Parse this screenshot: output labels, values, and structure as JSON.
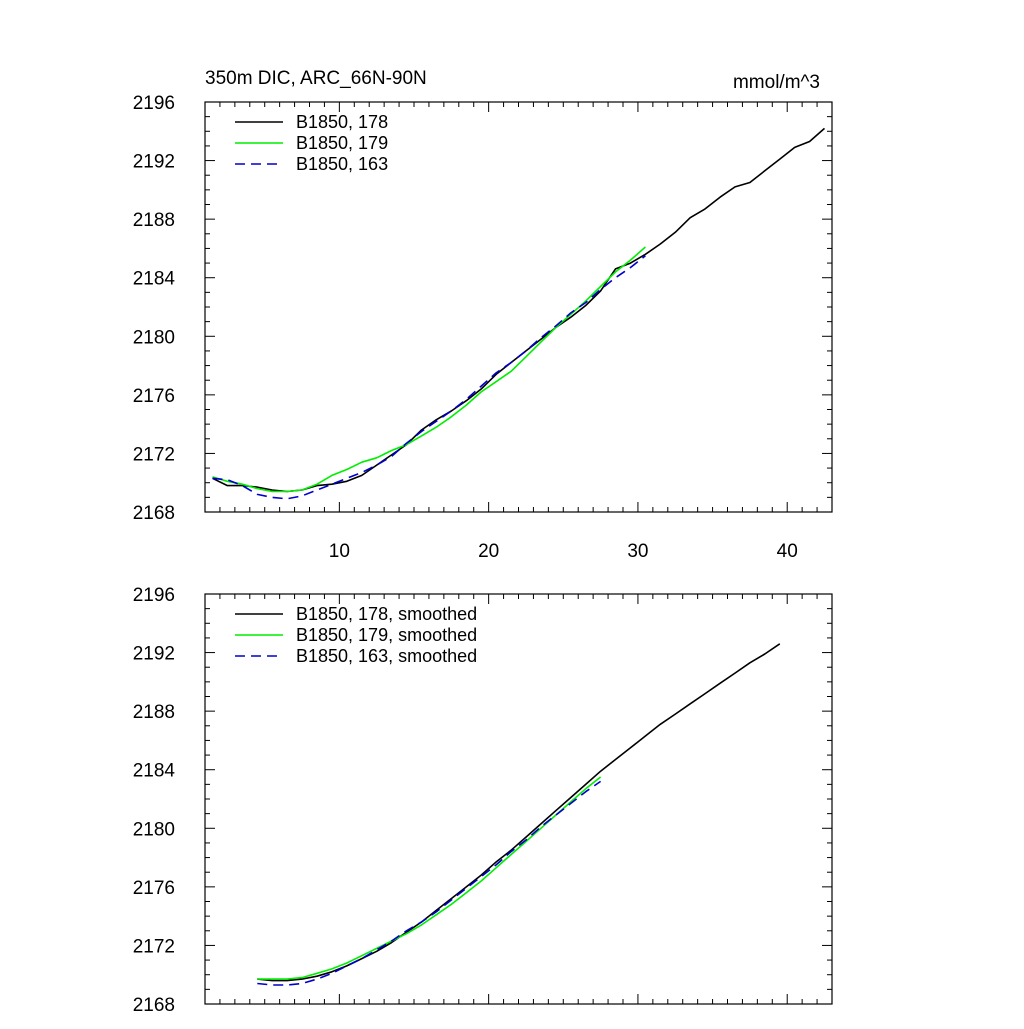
{
  "colors": {
    "black": "#000000",
    "green": "#00ee00",
    "blue": "#0000cc"
  },
  "chart_data": [
    {
      "type": "line",
      "title": "350m DIC, ARC_66N-90N",
      "units": "mmol/m^3",
      "xlim": [
        1,
        43
      ],
      "ylim": [
        2168,
        2196
      ],
      "x_ticks": [
        10,
        20,
        30,
        40
      ],
      "y_ticks": [
        2168,
        2172,
        2176,
        2180,
        2184,
        2188,
        2192,
        2196
      ],
      "legend_position": "top-left",
      "series": [
        {
          "name": "B1850, 178",
          "color": "#000000",
          "dash": "solid",
          "points": [
            [
              1.5,
              2170.3
            ],
            [
              2.5,
              2169.8
            ],
            [
              3.5,
              2169.8
            ],
            [
              4.5,
              2169.7
            ],
            [
              5.5,
              2169.5
            ],
            [
              6.5,
              2169.4
            ],
            [
              7.5,
              2169.5
            ],
            [
              8.5,
              2169.8
            ],
            [
              9.5,
              2169.9
            ],
            [
              10.5,
              2170.1
            ],
            [
              11.5,
              2170.5
            ],
            [
              12.5,
              2171.2
            ],
            [
              13.5,
              2171.9
            ],
            [
              14.5,
              2172.6
            ],
            [
              15.5,
              2173.6
            ],
            [
              16.5,
              2174.3
            ],
            [
              17.5,
              2174.9
            ],
            [
              18.5,
              2175.6
            ],
            [
              19.5,
              2176.4
            ],
            [
              20.5,
              2177.4
            ],
            [
              21.5,
              2178.2
            ],
            [
              22.5,
              2179.0
            ],
            [
              23.5,
              2179.8
            ],
            [
              24.5,
              2180.6
            ],
            [
              25.5,
              2181.3
            ],
            [
              26.5,
              2182.1
            ],
            [
              27.5,
              2183.1
            ],
            [
              28.5,
              2184.6
            ],
            [
              29.5,
              2185.0
            ],
            [
              30.5,
              2185.6
            ],
            [
              31.5,
              2186.3
            ],
            [
              32.5,
              2187.1
            ],
            [
              33.5,
              2188.1
            ],
            [
              34.5,
              2188.7
            ],
            [
              35.5,
              2189.5
            ],
            [
              36.5,
              2190.2
            ],
            [
              37.5,
              2190.5
            ],
            [
              38.5,
              2191.3
            ],
            [
              39.5,
              2192.1
            ],
            [
              40.5,
              2192.9
            ],
            [
              41.5,
              2193.3
            ],
            [
              42.5,
              2194.2
            ]
          ]
        },
        {
          "name": "B1850, 179",
          "color": "#00ee00",
          "dash": "solid",
          "points": [
            [
              1.5,
              2170.4
            ],
            [
              2.5,
              2170.1
            ],
            [
              3.5,
              2169.9
            ],
            [
              4.5,
              2169.6
            ],
            [
              5.5,
              2169.4
            ],
            [
              6.5,
              2169.4
            ],
            [
              7.5,
              2169.5
            ],
            [
              8.5,
              2169.9
            ],
            [
              9.5,
              2170.5
            ],
            [
              10.5,
              2170.9
            ],
            [
              11.5,
              2171.4
            ],
            [
              12.5,
              2171.7
            ],
            [
              13.5,
              2172.2
            ],
            [
              14.5,
              2172.6
            ],
            [
              15.5,
              2173.2
            ],
            [
              16.5,
              2173.8
            ],
            [
              17.5,
              2174.5
            ],
            [
              18.5,
              2175.3
            ],
            [
              19.5,
              2176.2
            ],
            [
              20.5,
              2176.9
            ],
            [
              21.5,
              2177.6
            ],
            [
              22.5,
              2178.6
            ],
            [
              23.5,
              2179.6
            ],
            [
              24.5,
              2180.6
            ],
            [
              25.5,
              2181.5
            ],
            [
              26.5,
              2182.4
            ],
            [
              27.5,
              2183.4
            ],
            [
              28.5,
              2184.4
            ],
            [
              29.5,
              2185.2
            ],
            [
              30.5,
              2186.1
            ]
          ]
        },
        {
          "name": "B1850, 163",
          "color": "#0000cc",
          "dash": "dashed",
          "points": [
            [
              1.5,
              2170.3
            ],
            [
              2.5,
              2170.2
            ],
            [
              3.5,
              2169.8
            ],
            [
              4.5,
              2169.2
            ],
            [
              5.5,
              2169.0
            ],
            [
              6.5,
              2168.9
            ],
            [
              7.5,
              2169.1
            ],
            [
              8.5,
              2169.5
            ],
            [
              9.5,
              2169.9
            ],
            [
              10.5,
              2170.3
            ],
            [
              11.5,
              2170.7
            ],
            [
              12.5,
              2171.2
            ],
            [
              13.5,
              2171.8
            ],
            [
              14.5,
              2172.7
            ],
            [
              15.5,
              2173.5
            ],
            [
              16.5,
              2174.2
            ],
            [
              17.5,
              2174.9
            ],
            [
              18.5,
              2175.7
            ],
            [
              19.5,
              2176.6
            ],
            [
              20.5,
              2177.5
            ],
            [
              21.5,
              2178.2
            ],
            [
              22.5,
              2179.0
            ],
            [
              23.5,
              2179.9
            ],
            [
              24.5,
              2180.7
            ],
            [
              25.5,
              2181.6
            ],
            [
              26.5,
              2182.3
            ],
            [
              27.5,
              2183.2
            ],
            [
              28.5,
              2184.0
            ],
            [
              29.5,
              2184.7
            ],
            [
              30.5,
              2185.5
            ]
          ]
        }
      ]
    },
    {
      "type": "line",
      "title": "",
      "units": "",
      "xlim": [
        1,
        43
      ],
      "ylim": [
        2168,
        2196
      ],
      "x_ticks": [
        10,
        20,
        30,
        40
      ],
      "y_ticks": [
        2168,
        2172,
        2176,
        2180,
        2184,
        2188,
        2192,
        2196
      ],
      "legend_position": "top-left",
      "series": [
        {
          "name": "B1850, 178, smoothed",
          "color": "#000000",
          "dash": "solid",
          "points": [
            [
              4.5,
              2169.7
            ],
            [
              5.5,
              2169.6
            ],
            [
              6.5,
              2169.6
            ],
            [
              7.5,
              2169.7
            ],
            [
              8.5,
              2169.9
            ],
            [
              9.5,
              2170.2
            ],
            [
              10.5,
              2170.6
            ],
            [
              11.5,
              2171.1
            ],
            [
              12.5,
              2171.6
            ],
            [
              13.5,
              2172.2
            ],
            [
              14.5,
              2172.9
            ],
            [
              15.5,
              2173.6
            ],
            [
              16.5,
              2174.4
            ],
            [
              17.5,
              2175.2
            ],
            [
              18.5,
              2176.0
            ],
            [
              19.5,
              2176.8
            ],
            [
              20.5,
              2177.7
            ],
            [
              21.5,
              2178.5
            ],
            [
              22.5,
              2179.4
            ],
            [
              23.5,
              2180.3
            ],
            [
              24.5,
              2181.2
            ],
            [
              25.5,
              2182.1
            ],
            [
              26.5,
              2183.0
            ],
            [
              27.5,
              2183.9
            ],
            [
              28.5,
              2184.7
            ],
            [
              29.5,
              2185.5
            ],
            [
              30.5,
              2186.3
            ],
            [
              31.5,
              2187.1
            ],
            [
              32.5,
              2187.8
            ],
            [
              33.5,
              2188.5
            ],
            [
              34.5,
              2189.2
            ],
            [
              35.5,
              2189.9
            ],
            [
              36.5,
              2190.6
            ],
            [
              37.5,
              2191.3
            ],
            [
              38.5,
              2191.9
            ],
            [
              39.5,
              2192.6
            ]
          ]
        },
        {
          "name": "B1850, 179, smoothed",
          "color": "#00ee00",
          "dash": "solid",
          "points": [
            [
              4.5,
              2169.7
            ],
            [
              5.5,
              2169.7
            ],
            [
              6.5,
              2169.7
            ],
            [
              7.5,
              2169.8
            ],
            [
              8.5,
              2170.1
            ],
            [
              9.5,
              2170.4
            ],
            [
              10.5,
              2170.8
            ],
            [
              11.5,
              2171.3
            ],
            [
              12.5,
              2171.8
            ],
            [
              13.5,
              2172.3
            ],
            [
              14.5,
              2172.8
            ],
            [
              15.5,
              2173.4
            ],
            [
              16.5,
              2174.1
            ],
            [
              17.5,
              2174.8
            ],
            [
              18.5,
              2175.6
            ],
            [
              19.5,
              2176.4
            ],
            [
              20.5,
              2177.3
            ],
            [
              21.5,
              2178.2
            ],
            [
              22.5,
              2179.1
            ],
            [
              23.5,
              2180.0
            ],
            [
              24.5,
              2180.9
            ],
            [
              25.5,
              2181.8
            ],
            [
              26.5,
              2182.7
            ],
            [
              27.5,
              2183.5
            ]
          ]
        },
        {
          "name": "B1850, 163, smoothed",
          "color": "#0000cc",
          "dash": "dashed",
          "points": [
            [
              4.5,
              2169.4
            ],
            [
              5.5,
              2169.3
            ],
            [
              6.5,
              2169.3
            ],
            [
              7.5,
              2169.4
            ],
            [
              8.5,
              2169.7
            ],
            [
              9.5,
              2170.1
            ],
            [
              10.5,
              2170.6
            ],
            [
              11.5,
              2171.1
            ],
            [
              12.5,
              2171.7
            ],
            [
              13.5,
              2172.3
            ],
            [
              14.5,
              2173.0
            ],
            [
              15.5,
              2173.6
            ],
            [
              16.5,
              2174.3
            ],
            [
              17.5,
              2175.1
            ],
            [
              18.5,
              2175.9
            ],
            [
              19.5,
              2176.7
            ],
            [
              20.5,
              2177.5
            ],
            [
              21.5,
              2178.4
            ],
            [
              22.5,
              2179.2
            ],
            [
              23.5,
              2180.1
            ],
            [
              24.5,
              2180.9
            ],
            [
              25.5,
              2181.7
            ],
            [
              26.5,
              2182.5
            ],
            [
              27.5,
              2183.2
            ]
          ]
        }
      ]
    }
  ]
}
